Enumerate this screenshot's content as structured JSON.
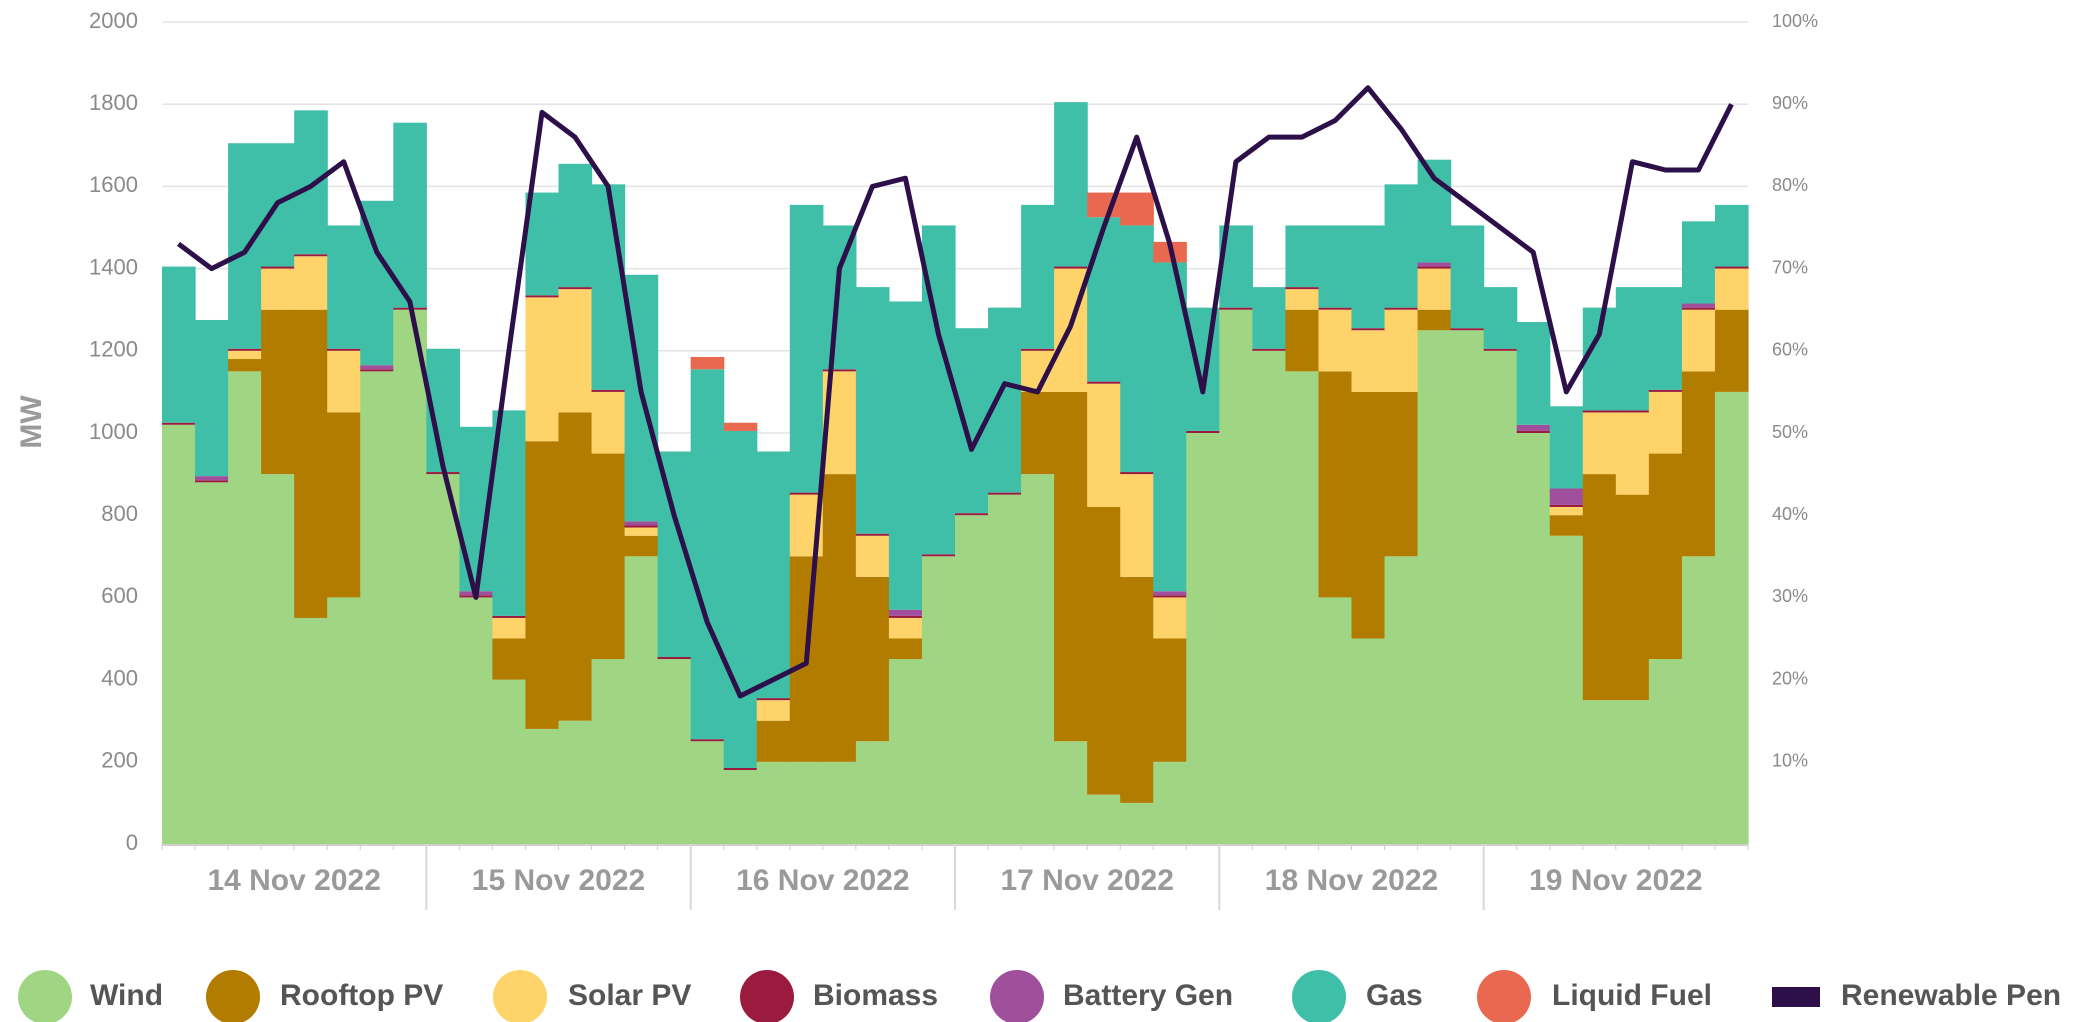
{
  "chart_data": {
    "type": "stacked_bar_line",
    "y_label": "MW",
    "ylim": [
      0,
      2000
    ],
    "yticks": [
      0,
      200,
      400,
      600,
      800,
      1000,
      1200,
      1400,
      1600,
      1800,
      2000
    ],
    "y2lim": [
      0,
      100
    ],
    "y2ticks": [
      {
        "value": 10,
        "label": "10%"
      },
      {
        "value": 20,
        "label": "20%"
      },
      {
        "value": 30,
        "label": "30%"
      },
      {
        "value": 40,
        "label": "40%"
      },
      {
        "value": 50,
        "label": "50%"
      },
      {
        "value": 60,
        "label": "60%"
      },
      {
        "value": 70,
        "label": "70%"
      },
      {
        "value": 80,
        "label": "80%"
      },
      {
        "value": 90,
        "label": "90%"
      },
      {
        "value": 100,
        "label": "100%"
      }
    ],
    "grid": true,
    "categories": [
      null,
      null,
      null,
      null,
      "14 Nov 2022",
      null,
      null,
      null,
      null,
      null,
      null,
      null,
      "15 Nov 2022",
      null,
      null,
      null,
      null,
      null,
      null,
      null,
      "16 Nov 2022",
      null,
      null,
      null,
      null,
      null,
      null,
      null,
      "17 Nov 2022",
      null,
      null,
      null,
      null,
      null,
      null,
      null,
      "18 Nov 2022",
      null,
      null,
      null,
      null,
      null,
      null,
      null,
      "19 Nov 2022",
      null,
      null,
      null
    ],
    "series": [
      {
        "name": "Wind",
        "color": "#a0d683",
        "values": [
          1020,
          880,
          1150,
          900,
          550,
          600,
          1150,
          1300,
          900,
          600,
          400,
          280,
          300,
          450,
          700,
          450,
          250,
          180,
          200,
          200,
          200,
          250,
          450,
          700,
          800,
          850,
          900,
          250,
          120,
          100,
          200,
          1000,
          1300,
          1200,
          1150,
          600,
          500,
          700,
          1250,
          1250,
          1200,
          1000,
          750,
          350,
          350,
          450,
          700,
          1100
        ]
      },
      {
        "name": "Rooftop PV",
        "color": "#b27c00",
        "values": [
          0,
          0,
          30,
          400,
          750,
          450,
          0,
          0,
          0,
          0,
          100,
          700,
          750,
          500,
          50,
          0,
          0,
          0,
          100,
          500,
          700,
          400,
          50,
          0,
          0,
          0,
          200,
          850,
          700,
          550,
          300,
          0,
          0,
          0,
          150,
          550,
          600,
          400,
          50,
          0,
          0,
          0,
          50,
          550,
          500,
          500,
          450,
          200
        ]
      },
      {
        "name": "Solar PV",
        "color": "#fdd36a",
        "values": [
          0,
          0,
          20,
          100,
          130,
          150,
          0,
          0,
          0,
          0,
          50,
          350,
          300,
          150,
          20,
          0,
          0,
          0,
          50,
          150,
          250,
          100,
          50,
          0,
          0,
          0,
          100,
          300,
          300,
          250,
          100,
          0,
          0,
          0,
          50,
          150,
          150,
          200,
          100,
          0,
          0,
          0,
          20,
          150,
          200,
          150,
          150,
          100
        ]
      },
      {
        "name": "Biomass",
        "color": "#9b1b3e",
        "values": [
          5,
          5,
          5,
          5,
          5,
          5,
          5,
          5,
          5,
          5,
          5,
          5,
          5,
          5,
          5,
          5,
          5,
          5,
          5,
          5,
          5,
          5,
          5,
          5,
          5,
          5,
          5,
          5,
          5,
          5,
          5,
          5,
          5,
          5,
          5,
          5,
          5,
          5,
          5,
          5,
          5,
          5,
          5,
          5,
          5,
          5,
          5,
          5
        ]
      },
      {
        "name": "Battery Gen",
        "color": "#a04f9d",
        "values": [
          0,
          10,
          0,
          0,
          0,
          0,
          10,
          0,
          0,
          10,
          0,
          0,
          0,
          0,
          10,
          0,
          0,
          0,
          0,
          0,
          0,
          0,
          15,
          0,
          0,
          0,
          0,
          0,
          0,
          0,
          10,
          0,
          0,
          0,
          0,
          0,
          0,
          0,
          10,
          0,
          0,
          15,
          40,
          0,
          0,
          0,
          10,
          0
        ]
      },
      {
        "name": "Gas",
        "color": "#3fbfa8",
        "values": [
          380,
          380,
          500,
          300,
          350,
          300,
          400,
          450,
          300,
          400,
          500,
          250,
          300,
          500,
          600,
          500,
          900,
          820,
          600,
          700,
          350,
          600,
          750,
          800,
          450,
          450,
          350,
          400,
          400,
          600,
          800,
          300,
          200,
          150,
          150,
          200,
          250,
          300,
          250,
          250,
          150,
          250,
          200,
          250,
          300,
          250,
          200,
          150
        ]
      },
      {
        "name": "Liquid Fuel",
        "color": "#e8694f",
        "values": [
          0,
          0,
          0,
          0,
          0,
          0,
          0,
          0,
          0,
          0,
          0,
          0,
          0,
          0,
          0,
          0,
          30,
          20,
          0,
          0,
          0,
          0,
          0,
          0,
          0,
          0,
          0,
          0,
          60,
          80,
          50,
          0,
          0,
          0,
          0,
          0,
          0,
          0,
          0,
          0,
          0,
          0,
          0,
          0,
          0,
          0,
          0,
          0
        ]
      },
      {
        "name": "Renewable Pen",
        "color": "#2d0f4a",
        "axis": "y2",
        "values": [
          73,
          70,
          72,
          78,
          80,
          83,
          72,
          66,
          46,
          30,
          60,
          89,
          86,
          80,
          55,
          40,
          27,
          18,
          20,
          22,
          70,
          80,
          81,
          62,
          48,
          56,
          55,
          63,
          75,
          86,
          73,
          55,
          83,
          86,
          86,
          88,
          92,
          87,
          81,
          78,
          75,
          72,
          55,
          62,
          83,
          82,
          82,
          90
        ]
      }
    ]
  }
}
